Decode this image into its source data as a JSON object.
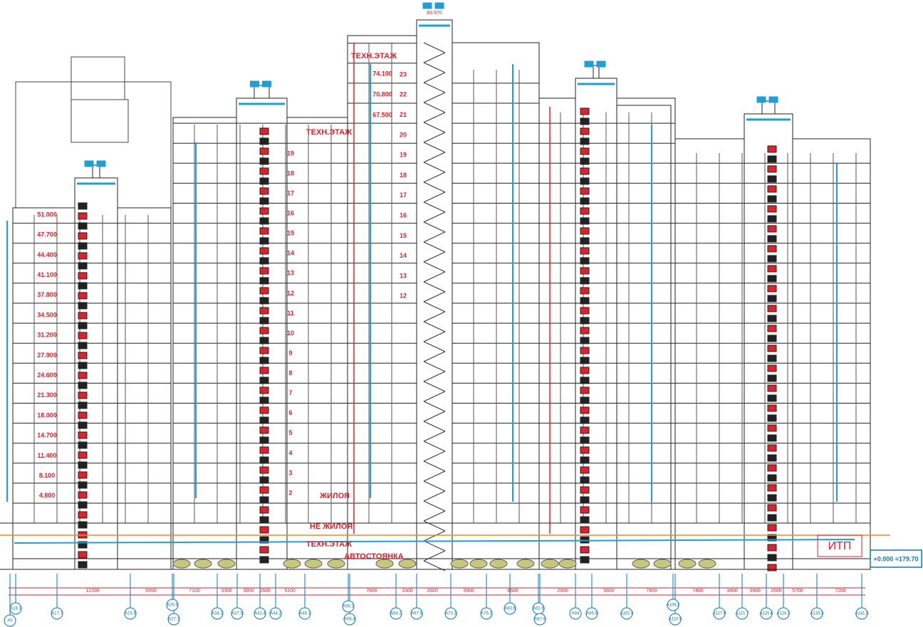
{
  "labels": {
    "tech_floor": "ТЕХН.ЭТАЖ",
    "residential": "ЖИЛОЯ",
    "non_residential": "НЕ ЖИЛОЯ",
    "parking": "АВТОСТОЯНКА",
    "itp": "ИТП",
    "zero_mark": "+0.000 =179.70",
    "roof_mark": "83.970"
  },
  "elevations_left": [
    "51.000",
    "47.700",
    "44.400",
    "41.100",
    "37.800",
    "34.500",
    "31.200",
    "27.900",
    "24.600",
    "21.300",
    "18.000",
    "14.700",
    "11.400",
    "8.100",
    "4.800"
  ],
  "elevations_top": [
    "74.100",
    "70.800",
    "67.500"
  ],
  "floors_block2": [
    "19",
    "18",
    "17",
    "16",
    "15",
    "14",
    "13",
    "12",
    "11",
    "10",
    "9",
    "8",
    "7",
    "6",
    "5",
    "4",
    "3",
    "2"
  ],
  "floors_block3": [
    "23",
    "22",
    "21",
    "20",
    "19",
    "18",
    "17",
    "16",
    "15",
    "14",
    "13",
    "12"
  ],
  "dimensions": [
    "12200",
    "6950",
    "7100",
    "3300",
    "3900",
    "2600",
    "5100",
    "7800",
    "3300",
    "2600",
    "3900",
    "6600",
    "2600",
    "5600",
    "7800",
    "7400",
    "3800",
    "3900",
    "2600",
    "5700",
    "7200"
  ],
  "axes": [
    "A18.1",
    "A0",
    "A17.7",
    "A19.5",
    "A26.8",
    "A27.1",
    "A34.2",
    "A37.5",
    "A41.4",
    "A44.2",
    "A49.1",
    "A56.1",
    "A56.4",
    "A64.2",
    "A67.5",
    "A73.3",
    "A79.2",
    "A83.6",
    "A91.6",
    "A87.9",
    "A94",
    "A96.6",
    "A102.4",
    "A108.2",
    "A110.5",
    "A117.9",
    "A121.7",
    "A125.6",
    "A128.2",
    "A133.3",
    "A141.4"
  ]
}
